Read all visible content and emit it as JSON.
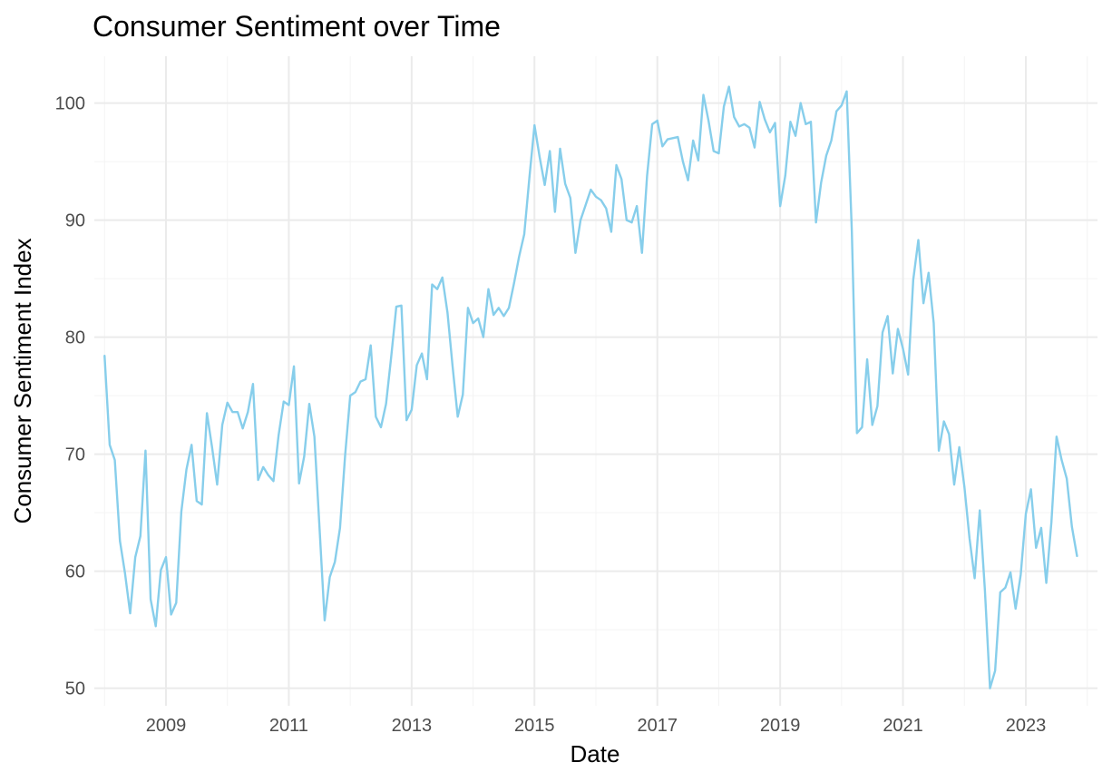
{
  "chart_data": {
    "type": "line",
    "title": "Consumer Sentiment over Time",
    "xlabel": "Date",
    "ylabel": "Consumer Sentiment Index",
    "xlim": [
      "2007-11",
      "2024-03"
    ],
    "ylim": [
      48.5,
      104
    ],
    "x_ticks": [
      2009,
      2011,
      2013,
      2015,
      2017,
      2019,
      2021,
      2023
    ],
    "y_ticks": [
      50,
      60,
      70,
      80,
      90,
      100
    ],
    "grid": true,
    "line_color": "#87CEEB",
    "series": [
      {
        "x": [
          "2008-01",
          "2008-02",
          "2008-03",
          "2008-04",
          "2008-05",
          "2008-06",
          "2008-07",
          "2008-08",
          "2008-09",
          "2008-10",
          "2008-11",
          "2008-12",
          "2009-01",
          "2009-02",
          "2009-03",
          "2009-04",
          "2009-05",
          "2009-06",
          "2009-07",
          "2009-08",
          "2009-09",
          "2009-10",
          "2009-11",
          "2009-12",
          "2010-01",
          "2010-02",
          "2010-03",
          "2010-04",
          "2010-05",
          "2010-06",
          "2010-07",
          "2010-08",
          "2010-09",
          "2010-10",
          "2010-11",
          "2010-12",
          "2011-01",
          "2011-02",
          "2011-03",
          "2011-04",
          "2011-05",
          "2011-06",
          "2011-07",
          "2011-08",
          "2011-09",
          "2011-10",
          "2011-11",
          "2011-12",
          "2012-01",
          "2012-02",
          "2012-03",
          "2012-04",
          "2012-05",
          "2012-06",
          "2012-07",
          "2012-08",
          "2012-09",
          "2012-10",
          "2012-11",
          "2012-12",
          "2013-01",
          "2013-02",
          "2013-03",
          "2013-04",
          "2013-05",
          "2013-06",
          "2013-07",
          "2013-08",
          "2013-09",
          "2013-10",
          "2013-11",
          "2013-12",
          "2014-01",
          "2014-02",
          "2014-03",
          "2014-04",
          "2014-05",
          "2014-06",
          "2014-07",
          "2014-08",
          "2014-09",
          "2014-10",
          "2014-11",
          "2014-12",
          "2015-01",
          "2015-02",
          "2015-03",
          "2015-04",
          "2015-05",
          "2015-06",
          "2015-07",
          "2015-08",
          "2015-09",
          "2015-10",
          "2015-11",
          "2015-12",
          "2016-01",
          "2016-02",
          "2016-03",
          "2016-04",
          "2016-05",
          "2016-06",
          "2016-07",
          "2016-08",
          "2016-09",
          "2016-10",
          "2016-11",
          "2016-12",
          "2017-01",
          "2017-02",
          "2017-03",
          "2017-04",
          "2017-05",
          "2017-06",
          "2017-07",
          "2017-08",
          "2017-09",
          "2017-10",
          "2017-11",
          "2017-12",
          "2018-01",
          "2018-02",
          "2018-03",
          "2018-04",
          "2018-05",
          "2018-06",
          "2018-07",
          "2018-08",
          "2018-09",
          "2018-10",
          "2018-11",
          "2018-12",
          "2019-01",
          "2019-02",
          "2019-03",
          "2019-04",
          "2019-05",
          "2019-06",
          "2019-07",
          "2019-08",
          "2019-09",
          "2019-10",
          "2019-11",
          "2019-12",
          "2020-01",
          "2020-02",
          "2020-03",
          "2020-04",
          "2020-05",
          "2020-06",
          "2020-07",
          "2020-08",
          "2020-09",
          "2020-10",
          "2020-11",
          "2020-12",
          "2021-01",
          "2021-02",
          "2021-03",
          "2021-04",
          "2021-05",
          "2021-06",
          "2021-07",
          "2021-08",
          "2021-09",
          "2021-10",
          "2021-11",
          "2021-12",
          "2022-01",
          "2022-02",
          "2022-03",
          "2022-04",
          "2022-05",
          "2022-06",
          "2022-07",
          "2022-08",
          "2022-09",
          "2022-10",
          "2022-11",
          "2022-12",
          "2023-01",
          "2023-02",
          "2023-03",
          "2023-04",
          "2023-05",
          "2023-06",
          "2023-07",
          "2023-08",
          "2023-09",
          "2023-10",
          "2023-11"
        ],
        "y": [
          78.4,
          70.8,
          69.5,
          62.6,
          59.8,
          56.4,
          61.2,
          63.0,
          70.3,
          57.6,
          55.3,
          60.1,
          61.2,
          56.3,
          57.3,
          65.1,
          68.7,
          70.8,
          66.0,
          65.7,
          73.5,
          70.6,
          67.4,
          72.5,
          74.4,
          73.6,
          73.6,
          72.2,
          73.6,
          76.0,
          67.8,
          68.9,
          68.2,
          67.7,
          71.6,
          74.5,
          74.2,
          77.5,
          67.5,
          69.8,
          74.3,
          71.5,
          63.7,
          55.8,
          59.5,
          60.8,
          63.7,
          69.9,
          75.0,
          75.3,
          76.2,
          76.4,
          79.3,
          73.2,
          72.3,
          74.3,
          78.3,
          82.6,
          82.7,
          72.9,
          73.8,
          77.6,
          78.6,
          76.4,
          84.5,
          84.1,
          85.1,
          82.1,
          77.5,
          73.2,
          75.1,
          82.5,
          81.2,
          81.6,
          80.0,
          84.1,
          81.9,
          82.5,
          81.8,
          82.5,
          84.6,
          86.9,
          88.8,
          93.6,
          98.1,
          95.4,
          93.0,
          95.9,
          90.7,
          96.1,
          93.1,
          91.9,
          87.2,
          90.0,
          91.3,
          92.6,
          92.0,
          91.7,
          91.0,
          89.0,
          94.7,
          93.5,
          90.0,
          89.8,
          91.2,
          87.2,
          93.8,
          98.2,
          98.5,
          96.3,
          96.9,
          97.0,
          97.1,
          95.0,
          93.4,
          96.8,
          95.1,
          100.7,
          98.5,
          95.9,
          95.7,
          99.7,
          101.4,
          98.8,
          98.0,
          98.2,
          97.9,
          96.2,
          100.1,
          98.6,
          97.5,
          98.3,
          91.2,
          93.8,
          98.4,
          97.2,
          100.0,
          98.2,
          98.4,
          89.8,
          93.2,
          95.5,
          96.8,
          99.3,
          99.8,
          101.0,
          89.1,
          71.8,
          72.3,
          78.1,
          72.5,
          74.1,
          80.4,
          81.8,
          76.9,
          80.7,
          79.0,
          76.8,
          84.9,
          88.3,
          82.9,
          85.5,
          81.2,
          70.3,
          72.8,
          71.7,
          67.4,
          70.6,
          67.2,
          62.8,
          59.4,
          65.2,
          58.4,
          50.0,
          51.5,
          58.2,
          58.6,
          59.9,
          56.8,
          59.7,
          64.9,
          67.0,
          62.0,
          63.7,
          59.0,
          64.2,
          71.5,
          69.5,
          67.9,
          63.8,
          61.3
        ]
      }
    ]
  }
}
